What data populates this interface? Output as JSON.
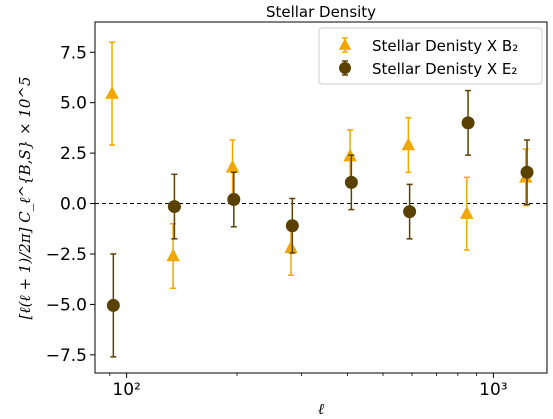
{
  "chart_data": {
    "type": "scatter",
    "title": "Stellar Density",
    "xlabel": "ℓ",
    "ylabel": "[ℓ(ℓ + 1)/2π] C_ℓ^{B,S} × 10^5",
    "x_scale": "log",
    "xlim": [
      82,
      1400
    ],
    "ylim": [
      -8.4,
      9.0
    ],
    "x_ticks": [
      100,
      1000
    ],
    "x_tick_labels": [
      "10²",
      "10³"
    ],
    "y_ticks": [
      -7.5,
      -5.0,
      -2.5,
      0.0,
      2.5,
      5.0,
      7.5
    ],
    "y_tick_labels": [
      "−7.5",
      "−5.0",
      "−2.5",
      "0.0",
      "2.5",
      "5.0",
      "7.5"
    ],
    "reference_line": {
      "y": 0,
      "style": "dashed"
    },
    "legend_position": "top-right",
    "legend": [
      "Stellar Denisty X B₂",
      "Stellar Denisty X E₂"
    ],
    "series": [
      {
        "name": "Stellar Denisty X B₂",
        "marker": "triangle",
        "color": "#f0a800",
        "x": [
          92,
          135,
          196,
          283,
          410,
          591,
          853,
          1235
        ],
        "y": [
          5.45,
          -2.6,
          1.8,
          -2.2,
          2.35,
          2.9,
          -0.5,
          1.3
        ],
        "err": [
          2.55,
          1.6,
          1.35,
          1.35,
          1.3,
          1.35,
          1.8,
          1.4
        ]
      },
      {
        "name": "Stellar Denisty X E₂",
        "marker": "circle",
        "color": "#5a4100",
        "x": [
          92,
          135,
          196,
          283,
          410,
          591,
          853,
          1235
        ],
        "y": [
          -5.05,
          -0.15,
          0.2,
          -1.1,
          1.05,
          -0.4,
          4.0,
          1.55
        ],
        "err": [
          2.55,
          1.6,
          1.35,
          1.35,
          1.35,
          1.35,
          1.6,
          1.6
        ]
      }
    ]
  }
}
